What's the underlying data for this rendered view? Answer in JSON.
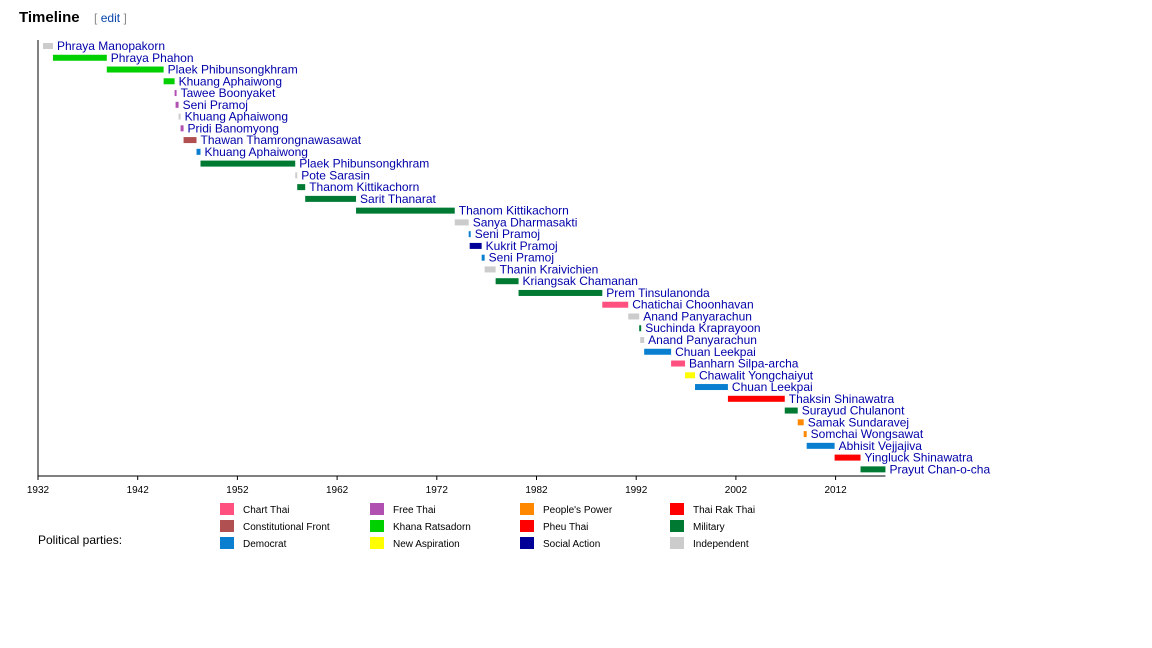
{
  "heading": {
    "title": "Timeline",
    "edit_open": "[",
    "edit_label": "edit",
    "edit_close": "]"
  },
  "legend_title": "Political parties:",
  "parties": [
    {
      "name": "Chart Thai",
      "color": "#ff5080"
    },
    {
      "name": "Constitutional Front",
      "color": "#b05050"
    },
    {
      "name": "Democrat",
      "color": "#0a7fd0"
    },
    {
      "name": "Free Thai",
      "color": "#b050b0"
    },
    {
      "name": "Khana Ratsadorn",
      "color": "#00d000"
    },
    {
      "name": "New Aspiration",
      "color": "#ffff00"
    },
    {
      "name": "People's Power",
      "color": "#ff8800"
    },
    {
      "name": "Pheu Thai",
      "color": "#ff0000"
    },
    {
      "name": "Social Action",
      "color": "#000099"
    },
    {
      "name": "Thai Rak Thai",
      "color": "#ff0000"
    },
    {
      "name": "Military",
      "color": "#007a33"
    },
    {
      "name": "Independent",
      "color": "#cccccc"
    }
  ],
  "chart_data": {
    "type": "gantt",
    "xlim": [
      1932,
      2017
    ],
    "x_ticks": [
      1932,
      1942,
      1952,
      1962,
      1972,
      1982,
      1992,
      2002,
      2012
    ],
    "bars": [
      {
        "label": "Phraya Manopakorn",
        "start": 1932.5,
        "end": 1933.5,
        "party": "Independent"
      },
      {
        "label": "Phraya Phahon",
        "start": 1933.5,
        "end": 1938.9,
        "party": "Khana Ratsadorn"
      },
      {
        "label": "Plaek Phibunsongkhram",
        "start": 1938.9,
        "end": 1944.6,
        "party": "Khana Ratsadorn"
      },
      {
        "label": "Khuang Aphaiwong",
        "start": 1944.6,
        "end": 1945.7,
        "party": "Khana Ratsadorn"
      },
      {
        "label": "Tawee Boonyaket",
        "start": 1945.7,
        "end": 1945.8,
        "party": "Free Thai"
      },
      {
        "label": "Seni Pramoj",
        "start": 1945.8,
        "end": 1946.1,
        "party": "Free Thai"
      },
      {
        "label": "Khuang Aphaiwong",
        "start": 1946.1,
        "end": 1946.3,
        "party": "Independent"
      },
      {
        "label": "Pridi Banomyong",
        "start": 1946.3,
        "end": 1946.6,
        "party": "Free Thai"
      },
      {
        "label": "Thawan Thamrongnawasawat",
        "start": 1946.6,
        "end": 1947.9,
        "party": "Constitutional Front"
      },
      {
        "label": "Khuang Aphaiwong",
        "start": 1947.9,
        "end": 1948.3,
        "party": "Democrat"
      },
      {
        "label": "Plaek Phibunsongkhram",
        "start": 1948.3,
        "end": 1957.8,
        "party": "Military"
      },
      {
        "label": "Pote Sarasin",
        "start": 1957.8,
        "end": 1958.0,
        "party": "Independent"
      },
      {
        "label": "Thanom Kittikachorn",
        "start": 1958.0,
        "end": 1958.8,
        "party": "Military"
      },
      {
        "label": "Sarit Thanarat",
        "start": 1958.8,
        "end": 1963.9,
        "party": "Military"
      },
      {
        "label": "Thanom Kittikachorn",
        "start": 1963.9,
        "end": 1973.8,
        "party": "Military"
      },
      {
        "label": "Sanya Dharmasakti",
        "start": 1973.8,
        "end": 1975.2,
        "party": "Independent"
      },
      {
        "label": "Seni Pramoj",
        "start": 1975.2,
        "end": 1975.3,
        "party": "Democrat"
      },
      {
        "label": "Kukrit Pramoj",
        "start": 1975.3,
        "end": 1976.5,
        "party": "Social Action"
      },
      {
        "label": "Seni Pramoj",
        "start": 1976.5,
        "end": 1976.8,
        "party": "Democrat"
      },
      {
        "label": "Thanin Kraivichien",
        "start": 1976.8,
        "end": 1977.9,
        "party": "Independent"
      },
      {
        "label": "Kriangsak Chamanan",
        "start": 1977.9,
        "end": 1980.2,
        "party": "Military"
      },
      {
        "label": "Prem Tinsulanonda",
        "start": 1980.2,
        "end": 1988.6,
        "party": "Military"
      },
      {
        "label": "Chatichai Choonhavan",
        "start": 1988.6,
        "end": 1991.2,
        "party": "Chart Thai"
      },
      {
        "label": "Anand Panyarachun",
        "start": 1991.2,
        "end": 1992.3,
        "party": "Independent"
      },
      {
        "label": "Suchinda Kraprayoon",
        "start": 1992.3,
        "end": 1992.4,
        "party": "Military"
      },
      {
        "label": "Anand Panyarachun",
        "start": 1992.4,
        "end": 1992.8,
        "party": "Independent"
      },
      {
        "label": "Chuan Leekpai",
        "start": 1992.8,
        "end": 1995.5,
        "party": "Democrat"
      },
      {
        "label": "Banharn Silpa-archa",
        "start": 1995.5,
        "end": 1996.9,
        "party": "Chart Thai"
      },
      {
        "label": "Chawalit Yongchaiyut",
        "start": 1996.9,
        "end": 1997.9,
        "party": "New Aspiration"
      },
      {
        "label": "Chuan Leekpai",
        "start": 1997.9,
        "end": 2001.2,
        "party": "Democrat"
      },
      {
        "label": "Thaksin Shinawatra",
        "start": 2001.2,
        "end": 2006.9,
        "party": "Thai Rak Thai"
      },
      {
        "label": "Surayud Chulanont",
        "start": 2006.9,
        "end": 2008.2,
        "party": "Military"
      },
      {
        "label": "Samak Sundaravej",
        "start": 2008.2,
        "end": 2008.8,
        "party": "People's Power"
      },
      {
        "label": "Somchai Wongsawat",
        "start": 2008.8,
        "end": 2009.1,
        "party": "People's Power"
      },
      {
        "label": "Abhisit Vejjajiva",
        "start": 2009.1,
        "end": 2011.9,
        "party": "Democrat"
      },
      {
        "label": "Yingluck Shinawatra",
        "start": 2011.9,
        "end": 2014.5,
        "party": "Pheu Thai"
      },
      {
        "label": "Prayut Chan-o-cha",
        "start": 2014.5,
        "end": 2017.0,
        "party": "Military"
      }
    ]
  }
}
